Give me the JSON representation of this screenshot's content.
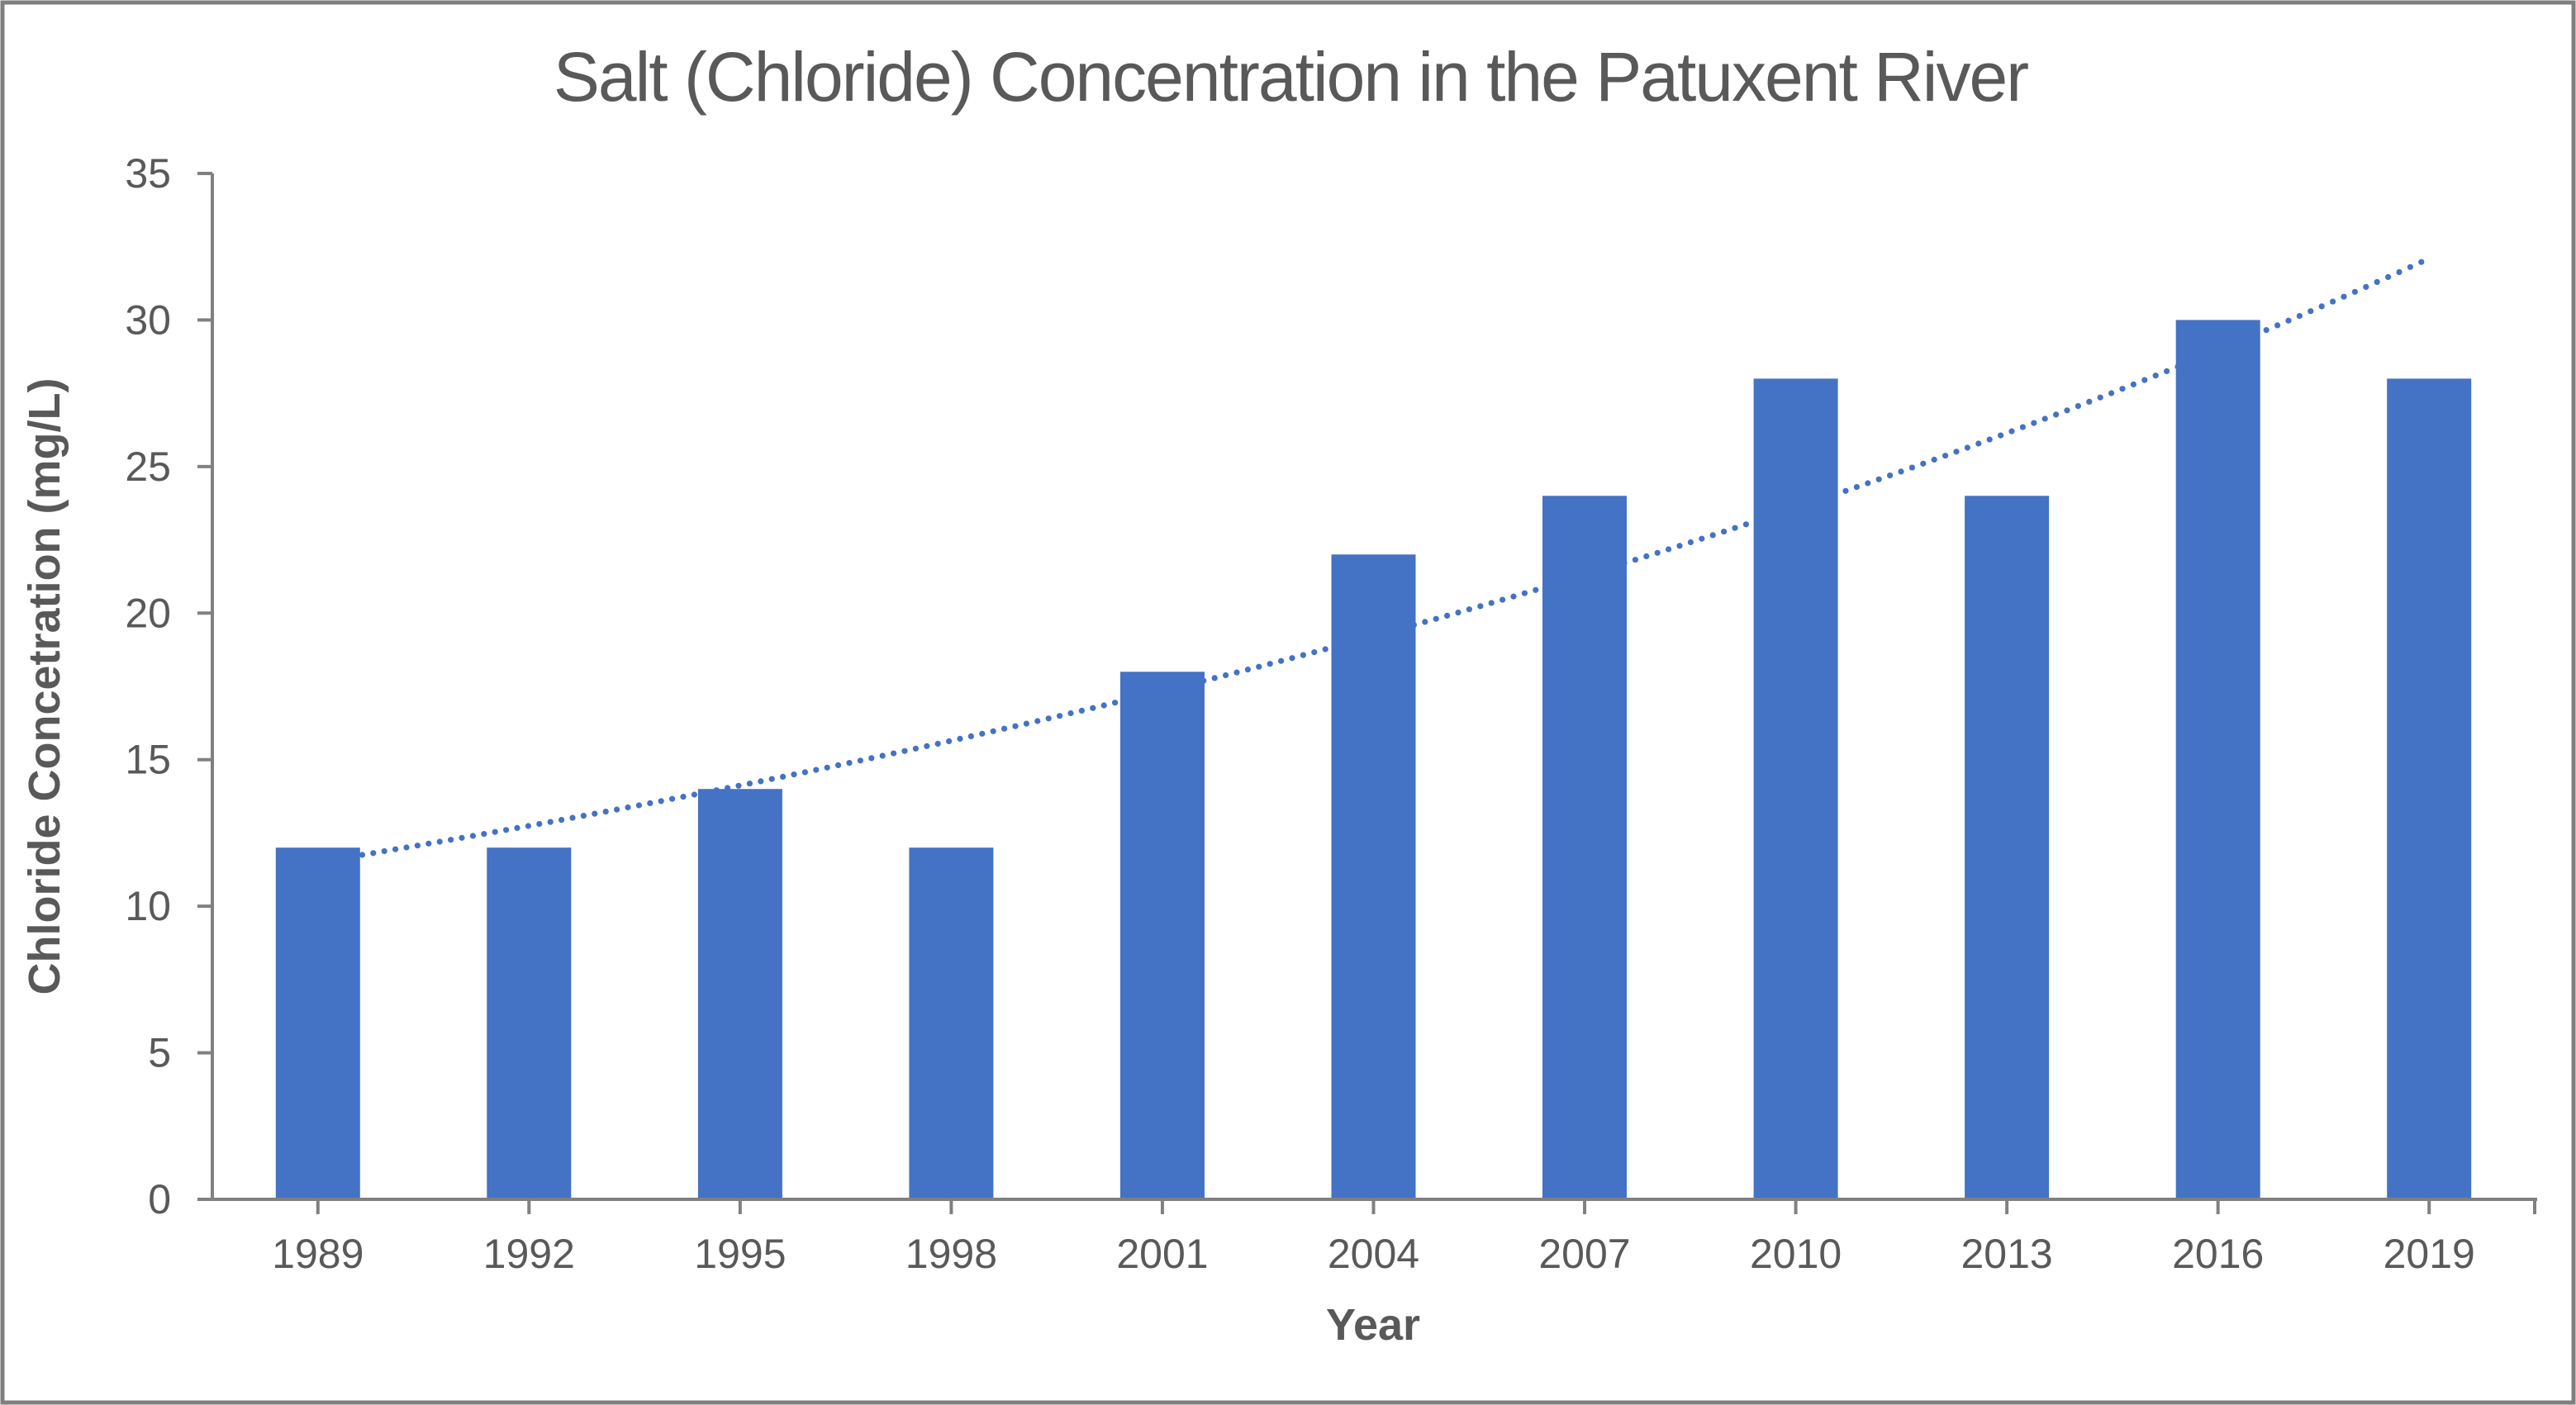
{
  "frame": {
    "border_color": "#7F7F7F",
    "background": "#FFFFFF"
  },
  "chart_data": {
    "type": "bar",
    "title": "Salt (Chloride) Concentration in the Patuxent River",
    "xlabel": "Year",
    "ylabel": "Chloride Concetration (mg/L)",
    "categories": [
      "1989",
      "1992",
      "1995",
      "1998",
      "2001",
      "2004",
      "2007",
      "2010",
      "2013",
      "2016",
      "2019"
    ],
    "values": [
      12,
      12,
      14,
      12,
      18,
      22,
      24,
      28,
      24,
      30,
      28
    ],
    "ylim": [
      0,
      35
    ],
    "yticks": [
      0,
      5,
      10,
      15,
      20,
      25,
      30,
      35
    ],
    "grid": false,
    "legend": "none",
    "bar_color": "#4472C4",
    "axis_color": "#808080",
    "text_color": "#595959",
    "trendline": {
      "type": "exponential",
      "line_style": "round-dot",
      "color": "#4472C4",
      "start_value": 11.5,
      "end_value": 32.1,
      "values_by_category": [
        11.5,
        12.74,
        14.12,
        15.64,
        17.33,
        19.2,
        21.27,
        23.57,
        26.11,
        28.93,
        32.1
      ]
    }
  }
}
